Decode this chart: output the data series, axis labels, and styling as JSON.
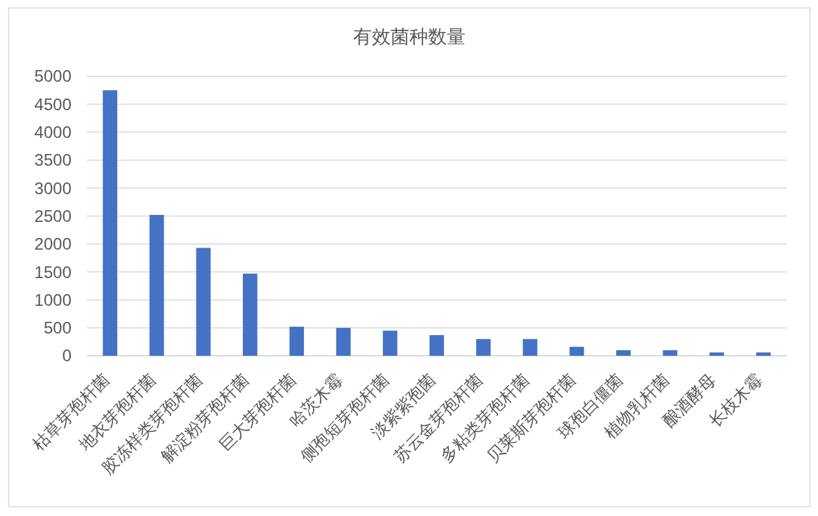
{
  "chart_data": {
    "type": "bar",
    "title": "有效菌种数量",
    "categories": [
      "枯草芽孢杆菌",
      "地衣芽孢杆菌",
      "胶冻样类芽孢杆菌",
      "解淀粉芽孢杆菌",
      "巨大芽孢杆菌",
      "哈茨木霉",
      "侧孢短芽孢杆菌",
      "淡紫紫孢菌",
      "苏云金芽孢杆菌",
      "多粘类芽孢杆菌",
      "贝莱斯芽孢杆菌",
      "球孢白僵菌",
      "植物乳杆菌",
      "酿酒酵母",
      "长枝木霉"
    ],
    "values": [
      4750,
      2520,
      1930,
      1470,
      520,
      500,
      450,
      370,
      300,
      300,
      160,
      100,
      100,
      60,
      60
    ],
    "color": "#4472c4",
    "ylim": [
      0,
      5000
    ],
    "yticks": [
      0,
      500,
      1000,
      1500,
      2000,
      2500,
      3000,
      3500,
      4000,
      4500,
      5000
    ],
    "grid": "y"
  }
}
